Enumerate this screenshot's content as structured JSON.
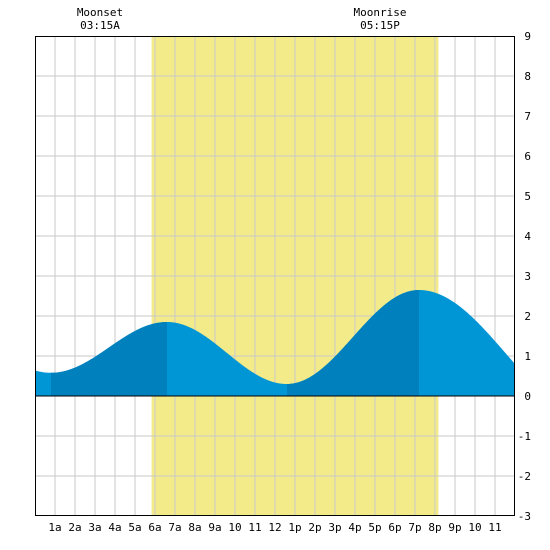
{
  "chart_data": {
    "type": "area",
    "title": "",
    "xlabel": "",
    "ylabel": "",
    "x_range_hours": [
      0,
      24
    ],
    "ylim": [
      -3,
      9
    ],
    "grid": true,
    "x_tick_labels": [
      "1a",
      "2a",
      "3a",
      "4a",
      "5a",
      "6a",
      "7a",
      "8a",
      "9a",
      "10",
      "11",
      "12",
      "1p",
      "2p",
      "3p",
      "4p",
      "5p",
      "6p",
      "7p",
      "8p",
      "9p",
      "10",
      "11"
    ],
    "y_tick_labels": [
      "9",
      "8",
      "7",
      "6",
      "5",
      "4",
      "3",
      "2",
      "1",
      "0",
      "-1",
      "-2",
      "-3"
    ],
    "daylight": {
      "start_hour": 5.83,
      "end_hour": 20.17
    },
    "annotations": [
      {
        "label": "Moonset",
        "time": "03:15A",
        "hour": 3.25
      },
      {
        "label": "Moonrise",
        "time": "05:15P",
        "hour": 17.25
      }
    ],
    "tide_extremes": [
      {
        "hour": 0.8,
        "height": 0.58,
        "type": "low"
      },
      {
        "hour": 6.6,
        "height": 1.85,
        "type": "high"
      },
      {
        "hour": 12.6,
        "height": 0.3,
        "type": "low"
      },
      {
        "hour": 19.2,
        "height": 2.65,
        "type": "high"
      }
    ],
    "x_end_height": 0.8,
    "colors": {
      "daylight": "#f3eb8a",
      "tide_light": "#0096d6",
      "tide_dark": "#0080bd",
      "grid": "#c8c8c8",
      "frame": "#000000"
    }
  }
}
